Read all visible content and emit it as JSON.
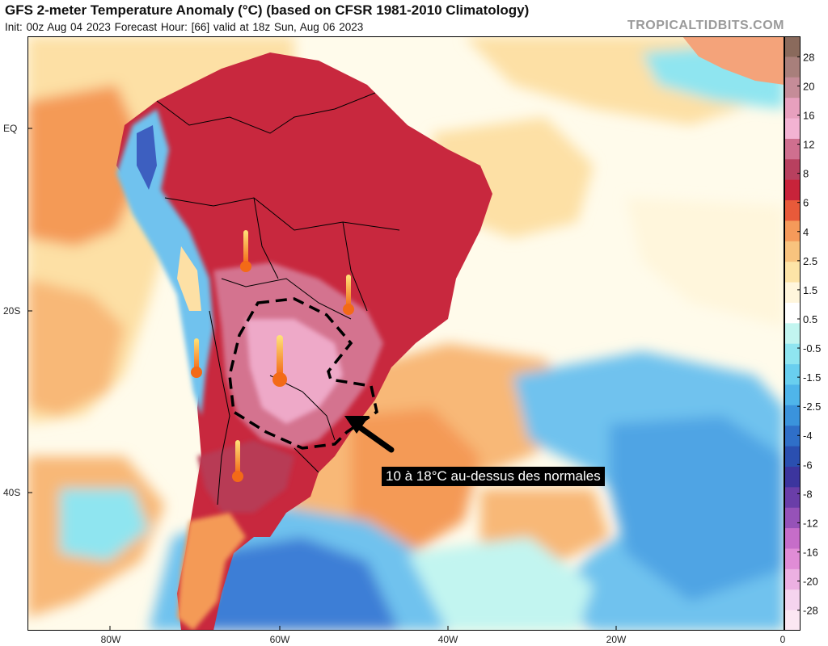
{
  "header": {
    "title": "GFS 2-meter Temperature Anomaly (°C) (based on CFSR 1981-2010 Climatology)",
    "subtitle": "Init: 00z Aug 04 2023   Forecast Hour: [66]   valid at 18z Sun, Aug 06 2023",
    "watermark": "TROPICALTIDBITS.COM"
  },
  "axes": {
    "lat_labels": [
      "EQ",
      "20S",
      "40S"
    ],
    "lon_labels": [
      "80W",
      "60W",
      "40W",
      "20W",
      "0"
    ]
  },
  "colorbar": {
    "labels": [
      "28",
      "20",
      "16",
      "12",
      "8",
      "6",
      "4",
      "2.5",
      "1.5",
      "0.5",
      "-0.5",
      "-1.5",
      "-2.5",
      "-4",
      "-6",
      "-8",
      "-12",
      "-16",
      "-20",
      "-28"
    ],
    "colors": [
      "#8a6a5c",
      "#a87f7b",
      "#c58c98",
      "#e7a0be",
      "#f3b3d3",
      "#cf6f8f",
      "#b8405f",
      "#c8233a",
      "#e85a3a",
      "#f59a5a",
      "#f8c37e",
      "#fde4a7",
      "#fff6dc",
      "#ffffff",
      "#c2f5f0",
      "#8fe5f0",
      "#69cfef",
      "#4fb5ea",
      "#3a93dc",
      "#2f6fc8",
      "#2a4fb0",
      "#3c359e",
      "#6a3ea8",
      "#9652b8",
      "#c66dc9",
      "#e08cd6",
      "#ecb0e2",
      "#f5d4ee",
      "#fbe7f2"
    ]
  },
  "annotation": {
    "text": "10 à 18°C au-dessus des normales"
  },
  "colors": {
    "ocean_neutral": "#fffbeb",
    "warm_light": "#fde0a5",
    "warm_orange": "#f49a57",
    "land_red": "#c8283e",
    "land_pink": "#d4738f",
    "core_pink": "#eea9c8",
    "cold_blue": "#6fc2ee",
    "cold_deep": "#3d7ed6"
  }
}
